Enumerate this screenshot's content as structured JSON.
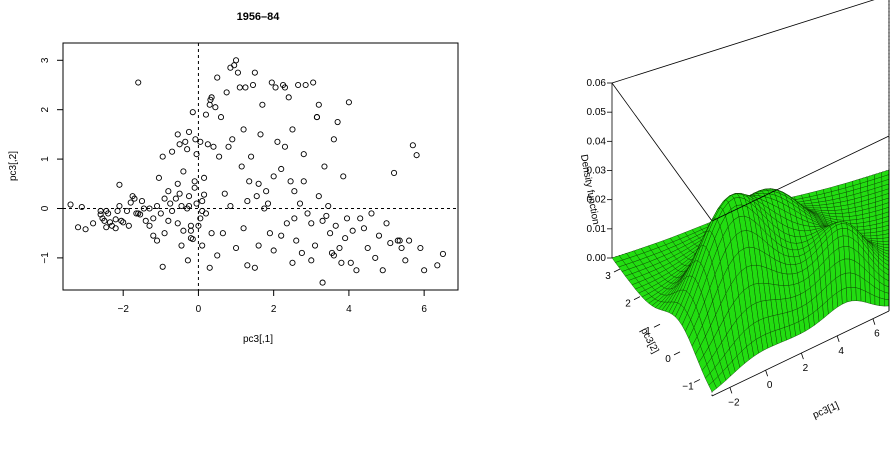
{
  "chart_data": [
    {
      "type": "scatter",
      "title": "1956–84",
      "xlabel": "pc3[,1]",
      "ylabel": "pc3[,2]",
      "xlim": [
        -3.6,
        6.9
      ],
      "ylim": [
        -1.65,
        3.35
      ],
      "xticks": [
        "−2",
        "0",
        "2",
        "4",
        "6"
      ],
      "xtick_values": [
        -2,
        0,
        2,
        4,
        6
      ],
      "yticks": [
        "−1",
        "0",
        "1",
        "2",
        "3"
      ],
      "ytick_values": [
        -1,
        0,
        1,
        2,
        3
      ],
      "reference_lines": {
        "x": 0,
        "y": 0,
        "style": "dashed"
      },
      "marker": "open-circle",
      "points": [
        [
          -3.4,
          0.08
        ],
        [
          -3.2,
          -0.38
        ],
        [
          -3.1,
          0.03
        ],
        [
          -3.0,
          -0.42
        ],
        [
          -2.8,
          -0.3
        ],
        [
          -2.6,
          -0.12
        ],
        [
          -2.55,
          -0.2
        ],
        [
          -2.5,
          -0.25
        ],
        [
          -2.45,
          -0.38
        ],
        [
          -2.4,
          -0.1
        ],
        [
          -2.35,
          -0.28
        ],
        [
          -2.3,
          -0.35
        ],
        [
          -2.2,
          -0.22
        ],
        [
          -2.15,
          -0.05
        ],
        [
          -2.1,
          0.05
        ],
        [
          -2.2,
          -0.4
        ],
        [
          -2.1,
          0.48
        ],
        [
          -2.0,
          -0.28
        ],
        [
          -1.9,
          -0.05
        ],
        [
          -1.8,
          0.12
        ],
        [
          -1.75,
          0.25
        ],
        [
          -1.7,
          0.2
        ],
        [
          -1.6,
          -0.1
        ],
        [
          -1.55,
          -0.12
        ],
        [
          -1.5,
          0.15
        ],
        [
          -1.45,
          0.0
        ],
        [
          -1.4,
          -0.25
        ],
        [
          -1.3,
          -0.35
        ],
        [
          -1.2,
          -0.2
        ],
        [
          -1.1,
          0.05
        ],
        [
          -1.0,
          -0.1
        ],
        [
          -0.9,
          0.2
        ],
        [
          -0.8,
          0.35
        ],
        [
          -0.75,
          0.1
        ],
        [
          -0.7,
          -0.05
        ],
        [
          -0.6,
          0.2
        ],
        [
          -0.55,
          -0.3
        ],
        [
          -0.5,
          0.3
        ],
        [
          -0.45,
          0.05
        ],
        [
          -0.4,
          -0.45
        ],
        [
          -0.3,
          0.0
        ],
        [
          -0.25,
          0.25
        ],
        [
          -0.2,
          -0.35
        ],
        [
          -0.15,
          -0.62
        ],
        [
          -0.1,
          0.42
        ],
        [
          -0.05,
          0.1
        ],
        [
          0.05,
          -0.2
        ],
        [
          0.1,
          0.15
        ],
        [
          0.15,
          0.28
        ],
        [
          0.2,
          -0.1
        ],
        [
          -1.6,
          2.55
        ],
        [
          -1.2,
          -0.55
        ],
        [
          -1.1,
          -0.65
        ],
        [
          -1.05,
          0.62
        ],
        [
          -0.95,
          1.05
        ],
        [
          -0.9,
          -0.5
        ],
        [
          -0.7,
          1.15
        ],
        [
          -0.55,
          1.5
        ],
        [
          -0.5,
          1.3
        ],
        [
          -0.45,
          -0.75
        ],
        [
          -0.4,
          0.75
        ],
        [
          -0.35,
          1.35
        ],
        [
          -0.3,
          1.2
        ],
        [
          -0.28,
          -1.05
        ],
        [
          -0.25,
          1.55
        ],
        [
          -0.2,
          -0.45
        ],
        [
          -0.15,
          1.95
        ],
        [
          -0.1,
          0.55
        ],
        [
          -0.08,
          1.4
        ],
        [
          -0.05,
          1.1
        ],
        [
          0.0,
          -0.35
        ],
        [
          0.05,
          1.35
        ],
        [
          0.1,
          -0.05
        ],
        [
          0.15,
          0.62
        ],
        [
          0.2,
          1.9
        ],
        [
          0.25,
          1.3
        ],
        [
          0.3,
          2.1
        ],
        [
          0.32,
          2.2
        ],
        [
          0.35,
          2.25
        ],
        [
          0.4,
          1.25
        ],
        [
          0.45,
          2.05
        ],
        [
          0.5,
          2.65
        ],
        [
          0.55,
          1.05
        ],
        [
          0.6,
          1.85
        ],
        [
          0.65,
          -0.5
        ],
        [
          0.7,
          0.3
        ],
        [
          0.75,
          2.35
        ],
        [
          0.8,
          1.25
        ],
        [
          0.85,
          2.85
        ],
        [
          0.9,
          1.4
        ],
        [
          0.95,
          2.9
        ],
        [
          1.0,
          3.0
        ],
        [
          1.05,
          2.75
        ],
        [
          1.1,
          2.45
        ],
        [
          1.15,
          0.85
        ],
        [
          1.2,
          1.6
        ],
        [
          1.25,
          2.45
        ],
        [
          1.3,
          0.15
        ],
        [
          1.35,
          0.55
        ],
        [
          1.4,
          1.05
        ],
        [
          1.45,
          2.5
        ],
        [
          1.5,
          2.75
        ],
        [
          1.55,
          0.25
        ],
        [
          1.6,
          0.5
        ],
        [
          1.65,
          1.5
        ],
        [
          1.7,
          2.1
        ],
        [
          1.75,
          0.0
        ],
        [
          1.8,
          0.35
        ],
        [
          1.85,
          0.1
        ],
        [
          1.9,
          -0.5
        ],
        [
          1.95,
          2.55
        ],
        [
          2.0,
          0.65
        ],
        [
          2.05,
          2.45
        ],
        [
          2.1,
          1.35
        ],
        [
          2.2,
          0.8
        ],
        [
          2.25,
          2.5
        ],
        [
          2.3,
          1.25
        ],
        [
          2.35,
          -0.3
        ],
        [
          2.4,
          2.25
        ],
        [
          2.45,
          0.55
        ],
        [
          2.5,
          1.6
        ],
        [
          2.55,
          0.35
        ],
        [
          2.6,
          -0.65
        ],
        [
          2.65,
          2.5
        ],
        [
          2.7,
          0.1
        ],
        [
          2.75,
          -0.9
        ],
        [
          2.8,
          1.1
        ],
        [
          2.85,
          2.5
        ],
        [
          2.9,
          -0.1
        ],
        [
          3.0,
          -0.3
        ],
        [
          3.05,
          2.55
        ],
        [
          3.1,
          -0.75
        ],
        [
          3.15,
          1.85
        ],
        [
          3.2,
          0.25
        ],
        [
          3.3,
          -0.25
        ],
        [
          3.35,
          0.85
        ],
        [
          3.4,
          -0.15
        ],
        [
          3.45,
          0.05
        ],
        [
          3.5,
          -0.5
        ],
        [
          3.55,
          -0.9
        ],
        [
          3.6,
          1.4
        ],
        [
          3.65,
          -0.35
        ],
        [
          3.7,
          1.75
        ],
        [
          3.75,
          -0.8
        ],
        [
          3.8,
          -1.1
        ],
        [
          3.85,
          0.65
        ],
        [
          3.9,
          -0.6
        ],
        [
          3.95,
          -0.2
        ],
        [
          4.0,
          2.15
        ],
        [
          4.1,
          -0.45
        ],
        [
          4.2,
          -1.25
        ],
        [
          4.3,
          -0.2
        ],
        [
          4.4,
          -0.4
        ],
        [
          4.5,
          -0.8
        ],
        [
          4.6,
          -0.1
        ],
        [
          4.7,
          -1.0
        ],
        [
          4.8,
          -0.55
        ],
        [
          4.9,
          -1.25
        ],
        [
          5.0,
          -0.3
        ],
        [
          5.1,
          -0.7
        ],
        [
          5.2,
          0.72
        ],
        [
          5.3,
          -0.65
        ],
        [
          5.35,
          -0.65
        ],
        [
          5.4,
          -0.8
        ],
        [
          5.5,
          -1.05
        ],
        [
          5.6,
          -0.65
        ],
        [
          5.7,
          1.28
        ],
        [
          5.8,
          1.08
        ],
        [
          5.9,
          -0.8
        ],
        [
          6.0,
          -1.25
        ],
        [
          6.35,
          -1.15
        ],
        [
          6.5,
          -0.92
        ],
        [
          -0.95,
          -1.18
        ],
        [
          0.5,
          -0.95
        ],
        [
          1.0,
          -0.8
        ],
        [
          1.3,
          -1.15
        ],
        [
          1.5,
          -1.2
        ],
        [
          2.0,
          -0.85
        ],
        [
          2.5,
          -1.1
        ],
        [
          3.0,
          -1.05
        ],
        [
          3.3,
          -1.5
        ],
        [
          3.6,
          -0.95
        ],
        [
          4.05,
          -1.1
        ],
        [
          -0.2,
          -0.6
        ],
        [
          0.1,
          -0.75
        ],
        [
          0.3,
          -1.2
        ],
        [
          -2.6,
          -0.05
        ],
        [
          -2.45,
          -0.05
        ],
        [
          -2.05,
          -0.25
        ],
        [
          -1.85,
          -0.35
        ],
        [
          -1.3,
          0.0
        ],
        [
          -0.8,
          -0.25
        ],
        [
          -0.55,
          0.5
        ],
        [
          -0.25,
          0.05
        ],
        [
          0.35,
          -0.5
        ],
        [
          0.85,
          0.05
        ],
        [
          1.2,
          -0.4
        ],
        [
          1.6,
          -0.75
        ],
        [
          2.2,
          -0.55
        ],
        [
          2.55,
          -0.2
        ],
        [
          3.2,
          2.1
        ],
        [
          2.3,
          2.45
        ],
        [
          2.8,
          0.55
        ],
        [
          3.15,
          1.85
        ],
        [
          -1.65,
          -0.1
        ]
      ]
    },
    {
      "type": "surface",
      "zlabel": "Density function",
      "xlabel": "pc3[1]",
      "ylabel": "pc3[2]",
      "zticks": [
        "0.00",
        "0.01",
        "0.02",
        "0.03",
        "0.04",
        "0.05",
        "0.06"
      ],
      "xticks": [
        "−2",
        "0",
        "2",
        "4",
        "6"
      ],
      "yticks": [
        "−1",
        "0",
        "1",
        "2",
        "3"
      ],
      "surface_color": "#22dd11",
      "mesh_color": "#000000"
    }
  ]
}
